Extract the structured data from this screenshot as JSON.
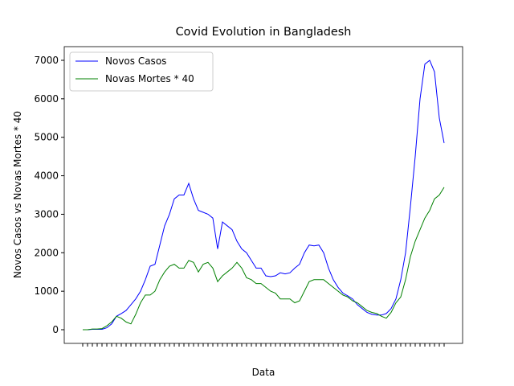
{
  "chart_data": {
    "type": "line",
    "title": "Covid Evolution in Bangladesh",
    "xlabel": "Data",
    "ylabel": "Novos Casos vs Novas Mortes * 40",
    "categories": [
      null,
      null,
      null,
      null,
      null,
      null,
      null,
      null,
      null,
      null,
      null,
      null,
      null,
      null,
      null,
      null,
      null,
      null,
      null,
      null,
      null,
      null,
      null,
      null,
      null,
      null,
      null,
      null,
      null,
      null,
      null,
      null,
      null,
      null,
      null,
      null,
      null,
      null,
      null,
      null,
      null,
      null,
      null,
      null,
      null,
      null,
      null,
      null,
      null,
      null,
      null,
      null,
      null,
      null,
      null,
      null,
      null,
      null,
      null,
      null,
      null,
      null,
      null,
      null,
      null,
      null,
      null,
      null,
      null,
      null,
      null,
      null,
      null,
      null,
      null,
      null
    ],
    "series": [
      {
        "name": "Novos Casos",
        "color": "#0000ff",
        "values": [
          0,
          0,
          10,
          10,
          10,
          50,
          150,
          350,
          420,
          500,
          650,
          800,
          1000,
          1300,
          1650,
          1700,
          2200,
          2700,
          3000,
          3400,
          3500,
          3500,
          3800,
          3400,
          3100,
          3050,
          3000,
          2900,
          2100,
          2800,
          2700,
          2600,
          2300,
          2100,
          2000,
          1800,
          1600,
          1600,
          1400,
          1380,
          1400,
          1480,
          1450,
          1480,
          1600,
          1700,
          2000,
          2200,
          2180,
          2200,
          2000,
          1600,
          1300,
          1100,
          950,
          880,
          800,
          650,
          550,
          450,
          400,
          380,
          380,
          420,
          550,
          800,
          1300,
          2000,
          3200,
          4500,
          6000,
          6900,
          7000,
          6700,
          5500,
          4850
        ]
      },
      {
        "name": "Novas Mortes * 40",
        "color": "#008000",
        "values": [
          0,
          0,
          20,
          20,
          30,
          100,
          200,
          350,
          300,
          200,
          150,
          400,
          700,
          900,
          900,
          1000,
          1300,
          1500,
          1650,
          1700,
          1600,
          1600,
          1800,
          1750,
          1500,
          1700,
          1750,
          1600,
          1250,
          1400,
          1500,
          1600,
          1750,
          1600,
          1350,
          1300,
          1200,
          1200,
          1100,
          1000,
          950,
          800,
          800,
          800,
          700,
          750,
          1000,
          1250,
          1300,
          1300,
          1300,
          1200,
          1100,
          1000,
          900,
          850,
          750,
          700,
          600,
          500,
          450,
          420,
          350,
          300,
          450,
          700,
          850,
          1300,
          1900,
          2300,
          2600,
          2900,
          3100,
          3400,
          3500,
          3700
        ]
      }
    ],
    "ylim": [
      -355,
      7355
    ],
    "yticks": [
      0,
      1000,
      2000,
      3000,
      4000,
      5000,
      6000,
      7000
    ],
    "legend": "upper left"
  }
}
